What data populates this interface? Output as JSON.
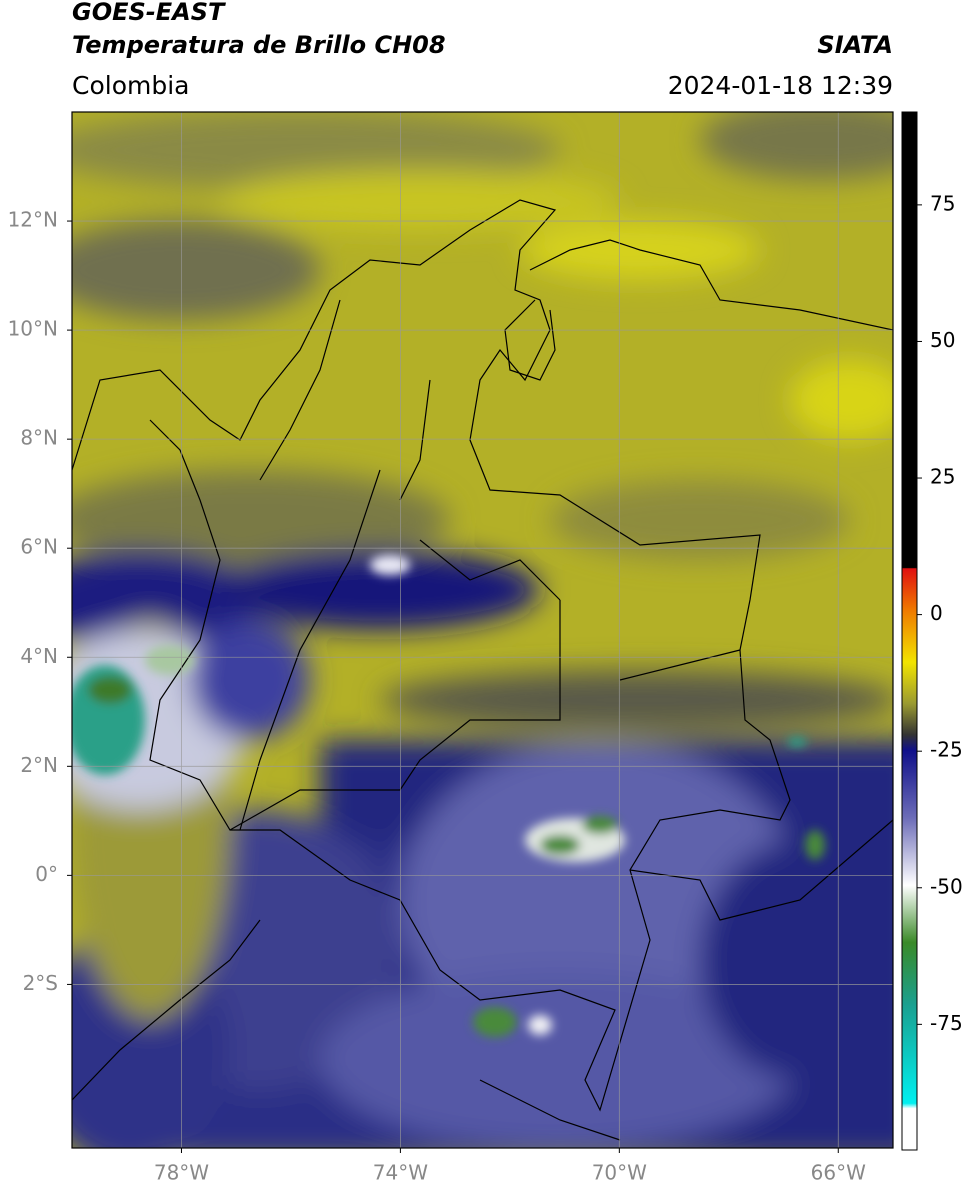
{
  "header": {
    "satellite": "GOES-EAST",
    "product": "Temperatura de Brillo CH08",
    "source": "SIATA",
    "region": "Colombia",
    "datetime": "2024-01-18 12:39"
  },
  "map": {
    "lonlim": [
      -80,
      -65
    ],
    "latlim": [
      -5,
      14
    ],
    "lat_ticks": [
      {
        "value": 12,
        "label": "12°N"
      },
      {
        "value": 10,
        "label": "10°N"
      },
      {
        "value": 8,
        "label": "8°N"
      },
      {
        "value": 6,
        "label": "6°N"
      },
      {
        "value": 4,
        "label": "4°N"
      },
      {
        "value": 2,
        "label": "2°N"
      },
      {
        "value": 0,
        "label": "0°"
      },
      {
        "value": -2,
        "label": "2°S"
      }
    ],
    "lon_ticks": [
      {
        "value": -78,
        "label": "78°W"
      },
      {
        "value": -74,
        "label": "74°W"
      },
      {
        "value": -70,
        "label": "70°W"
      },
      {
        "value": -66,
        "label": "66°W"
      }
    ],
    "grid": true
  },
  "colorbar": {
    "lim": [
      -98,
      92
    ],
    "ticks": [
      75,
      50,
      25,
      0,
      -25,
      -50,
      -75
    ]
  }
}
